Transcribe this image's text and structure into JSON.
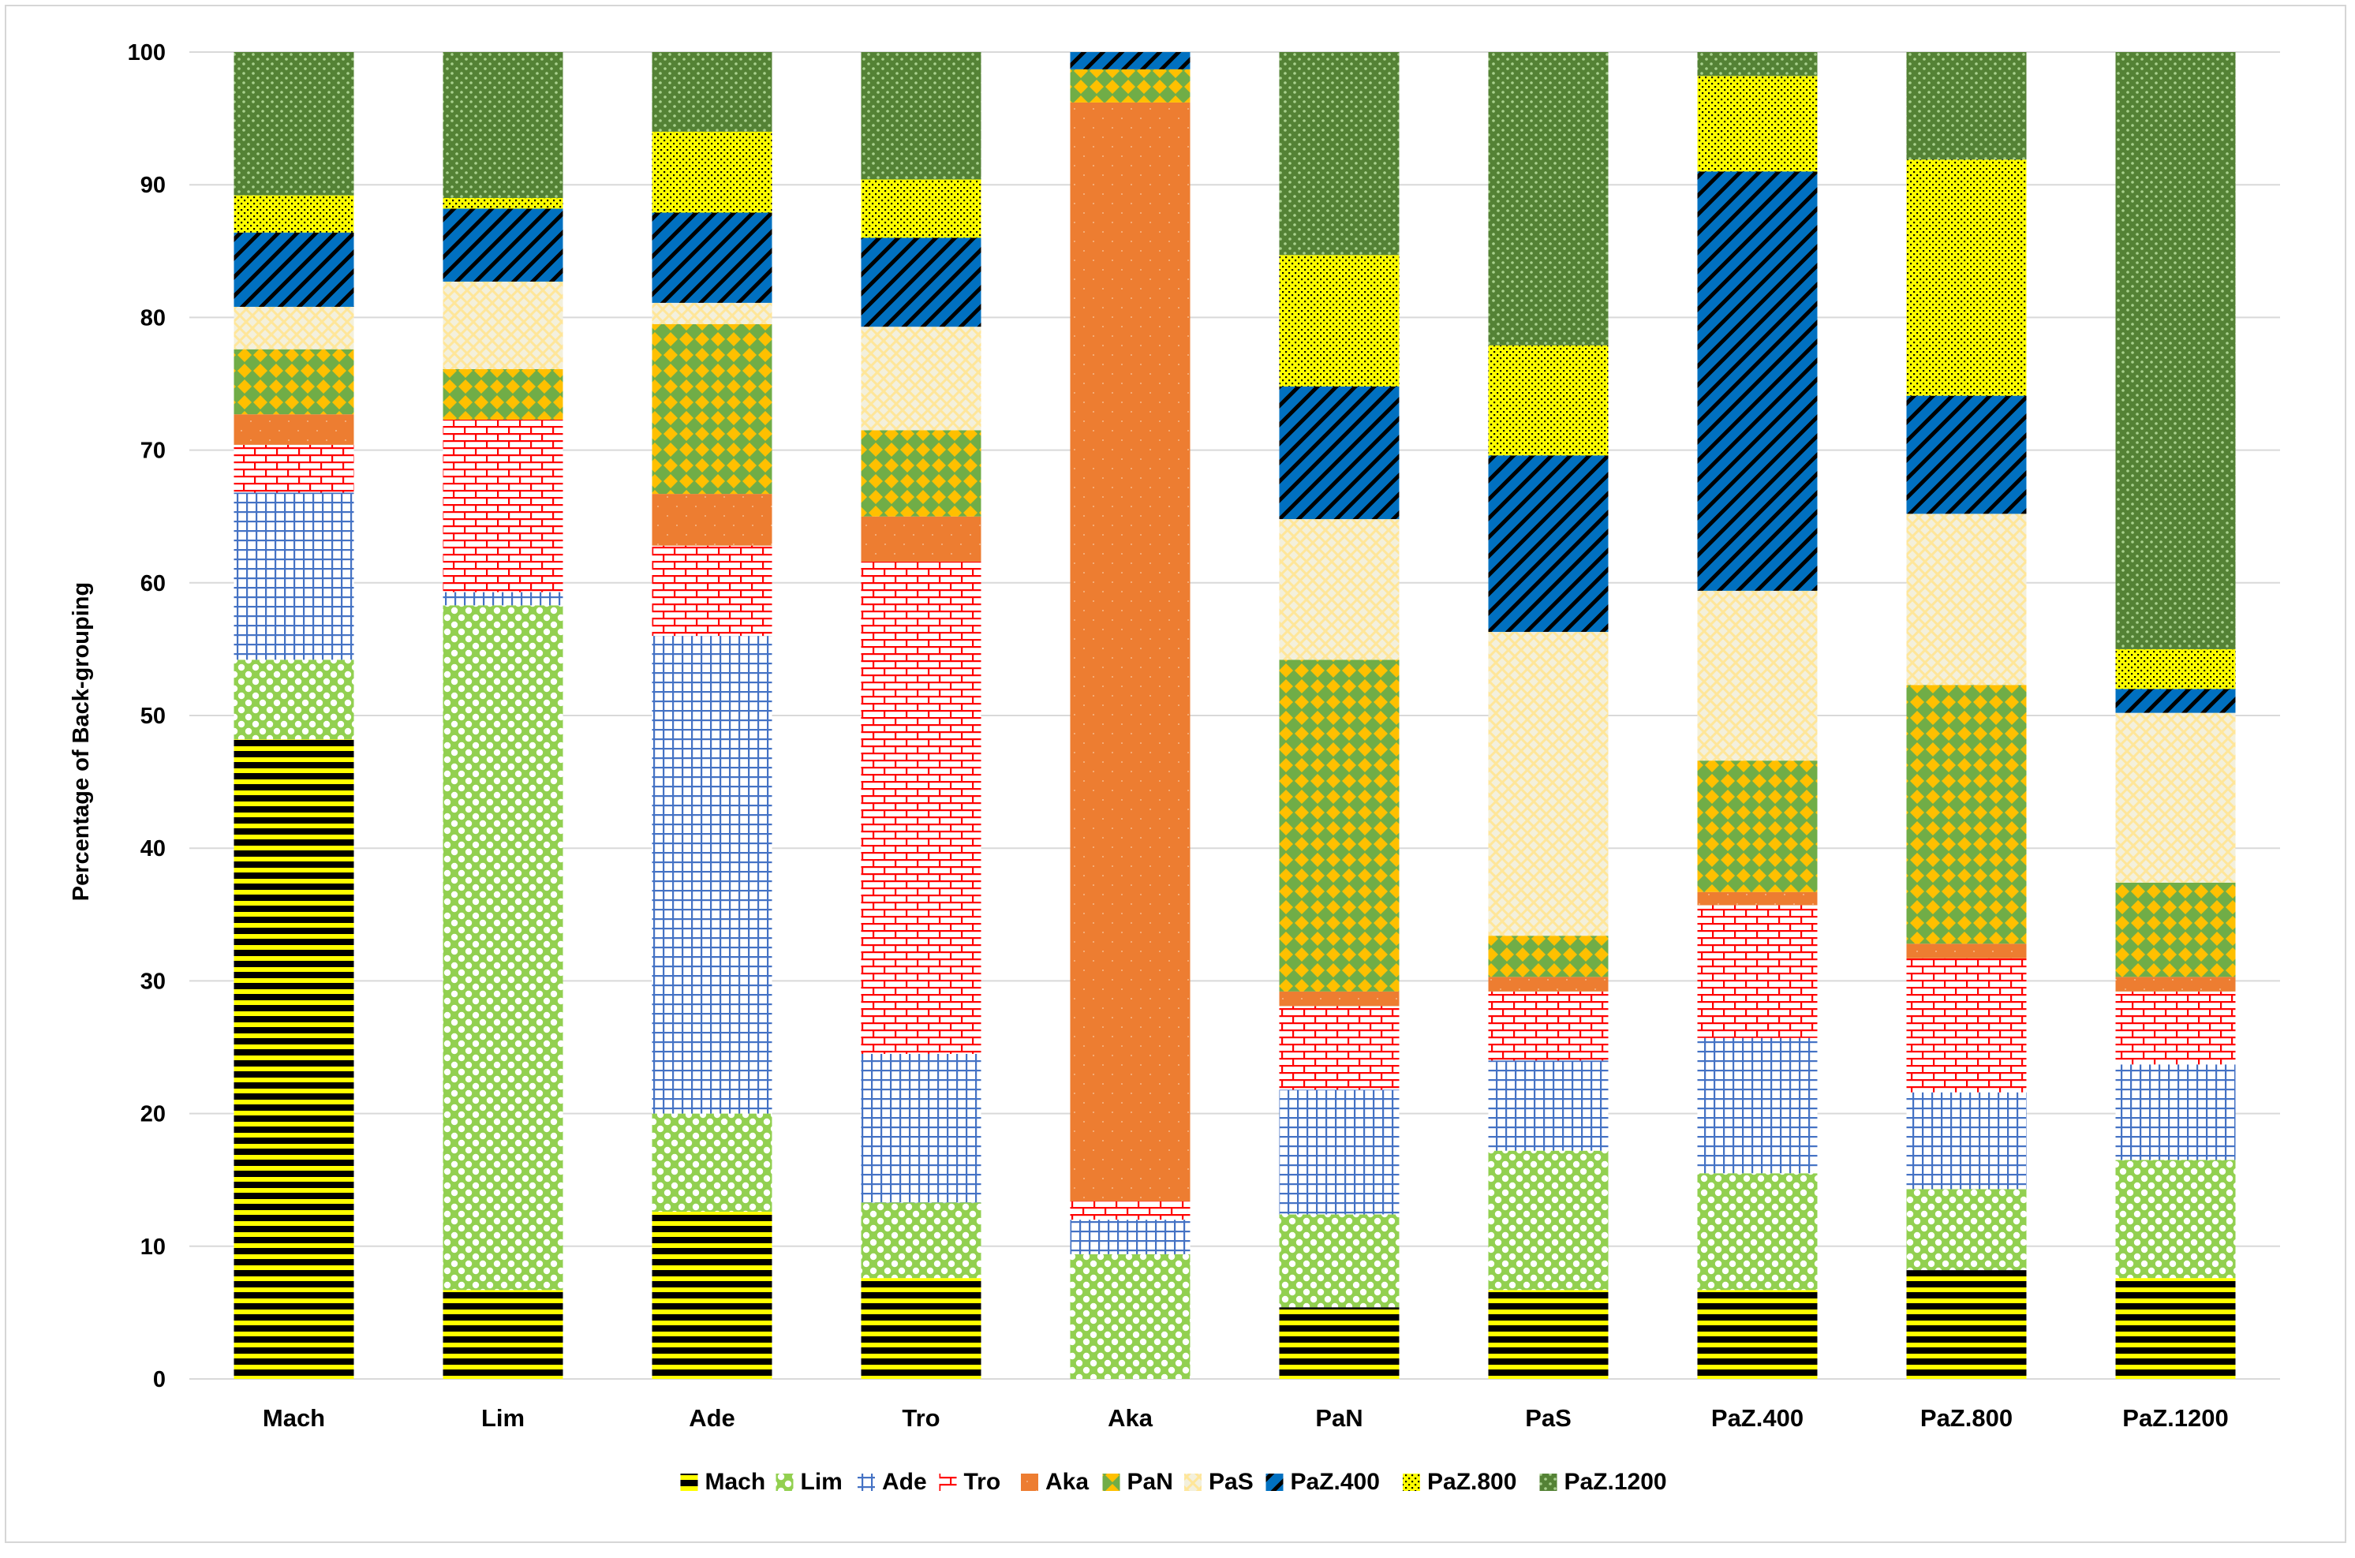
{
  "chart_data": {
    "type": "bar",
    "stacked": true,
    "title": "",
    "xlabel": "",
    "ylabel": "Percentage  of Back-grouping",
    "ylim": [
      0,
      100
    ],
    "yticks": [
      0,
      10,
      20,
      30,
      40,
      50,
      60,
      70,
      80,
      90,
      100
    ],
    "grid": true,
    "legend_position": "bottom",
    "categories": [
      "Mach",
      "Lim",
      "Ade",
      "Tro",
      "Aka",
      "PaN",
      "PaS",
      "PaZ.400",
      "PaZ.800",
      "PaZ.1200"
    ],
    "series": [
      {
        "name": "Mach",
        "pattern": "hstripes",
        "color": "#000000",
        "color2": "#ffff00",
        "values": [
          48.2,
          6.7,
          12.6,
          7.6,
          0.0,
          5.4,
          6.7,
          6.7,
          8.2,
          7.6
        ]
      },
      {
        "name": "Lim",
        "pattern": "dots",
        "color": "#92d050",
        "color2": "#ffffff",
        "values": [
          6.0,
          51.6,
          7.4,
          5.7,
          9.4,
          7.0,
          10.5,
          8.8,
          6.1,
          8.9
        ]
      },
      {
        "name": "Ade",
        "pattern": "grid",
        "color": "#4472c4",
        "color2": "#ffffff",
        "values": [
          12.6,
          1.0,
          36.0,
          11.2,
          2.6,
          9.4,
          6.8,
          10.2,
          7.3,
          7.2
        ]
      },
      {
        "name": "Tro",
        "pattern": "brick",
        "color": "#ff0000",
        "color2": "#ffffff",
        "values": [
          3.6,
          13.0,
          6.8,
          37.1,
          1.4,
          6.3,
          5.2,
          10.0,
          10.1,
          5.5
        ]
      },
      {
        "name": "Aka",
        "pattern": "solid",
        "color": "#ed7d31",
        "color2": "#ffffff",
        "values": [
          2.3,
          0.0,
          3.9,
          3.4,
          82.8,
          1.1,
          1.1,
          1.0,
          1.1,
          1.1
        ]
      },
      {
        "name": "PaN",
        "pattern": "diamond",
        "color": "#70ad47",
        "color2": "#ffc000",
        "values": [
          4.9,
          3.8,
          12.8,
          6.5,
          2.5,
          25.0,
          3.1,
          9.9,
          19.5,
          7.1
        ]
      },
      {
        "name": "PaS",
        "pattern": "lattice",
        "color": "#ffe699",
        "color2": "#f3f0dc",
        "values": [
          3.2,
          6.6,
          1.6,
          7.8,
          0.0,
          10.6,
          22.9,
          12.8,
          12.9,
          12.8
        ]
      },
      {
        "name": "PaZ.400",
        "pattern": "diagonal",
        "color": "#0070c0",
        "color2": "#000000",
        "values": [
          5.6,
          5.5,
          6.8,
          6.7,
          1.5,
          10.0,
          13.3,
          31.6,
          8.9,
          1.8
        ]
      },
      {
        "name": "PaZ.800",
        "pattern": "smalldots",
        "color": "#ffff00",
        "color2": "#000000",
        "values": [
          2.8,
          0.8,
          6.1,
          4.4,
          0.0,
          9.9,
          8.3,
          7.2,
          17.8,
          3.0
        ]
      },
      {
        "name": "PaZ.1200",
        "pattern": "greendots",
        "color": "#548235",
        "color2": "#a9d18e",
        "values": [
          10.8,
          11.0,
          6.0,
          9.6,
          0.0,
          15.3,
          22.1,
          1.8,
          8.3,
          45.0
        ]
      }
    ]
  }
}
